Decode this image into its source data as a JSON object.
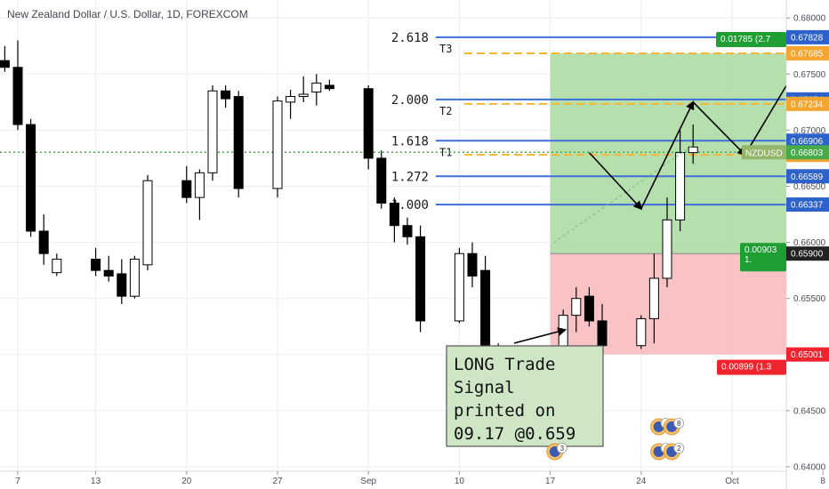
{
  "chart_data": {
    "type": "candlestick",
    "title": "New Zealand Dollar / U.S. Dollar, 1D, FOREXCOM",
    "symbol_tag": "NZDUSD",
    "xlabel": "",
    "ylabel": "",
    "ylim": [
      0.64,
      0.681
    ],
    "x_ticks": [
      {
        "label": "7",
        "date": "2018-08-07"
      },
      {
        "label": "13",
        "date": "2018-08-13"
      },
      {
        "label": "20",
        "date": "2018-08-20"
      },
      {
        "label": "27",
        "date": "2018-08-27"
      },
      {
        "label": "Sep",
        "date": "2018-09-03"
      },
      {
        "label": "10",
        "date": "2018-09-10"
      },
      {
        "label": "17",
        "date": "2018-09-17"
      },
      {
        "label": "24",
        "date": "2018-09-24"
      },
      {
        "label": "Oct",
        "date": "2018-10-01"
      },
      {
        "label": "8",
        "date": "2018-10-08"
      }
    ],
    "y_ticks": [
      "0.68000",
      "0.67500",
      "0.67000",
      "0.66500",
      "0.66000",
      "0.65500",
      "0.65000",
      "0.64500",
      "0.64000"
    ],
    "candles": [
      {
        "date": "2018-08-02",
        "o": 0.676,
        "h": 0.6772,
        "l": 0.6748,
        "c": 0.6752
      },
      {
        "date": "2018-08-03",
        "o": 0.6752,
        "h": 0.6765,
        "l": 0.6745,
        "c": 0.6762
      },
      {
        "date": "2018-08-06",
        "o": 0.6762,
        "h": 0.6775,
        "l": 0.6752,
        "c": 0.6756
      },
      {
        "date": "2018-08-07",
        "o": 0.6756,
        "h": 0.678,
        "l": 0.67,
        "c": 0.6705
      },
      {
        "date": "2018-08-08",
        "o": 0.6705,
        "h": 0.671,
        "l": 0.6605,
        "c": 0.661
      },
      {
        "date": "2018-08-09",
        "o": 0.661,
        "h": 0.6625,
        "l": 0.658,
        "c": 0.659
      },
      {
        "date": "2018-08-10",
        "o": 0.6573,
        "h": 0.659,
        "l": 0.657,
        "c": 0.6585
      },
      {
        "date": "2018-08-13",
        "o": 0.6585,
        "h": 0.6595,
        "l": 0.657,
        "c": 0.6575
      },
      {
        "date": "2018-08-14",
        "o": 0.6575,
        "h": 0.6588,
        "l": 0.6565,
        "c": 0.657
      },
      {
        "date": "2018-08-15",
        "o": 0.6572,
        "h": 0.6585,
        "l": 0.6545,
        "c": 0.6552
      },
      {
        "date": "2018-08-16",
        "o": 0.6552,
        "h": 0.6588,
        "l": 0.655,
        "c": 0.6585
      },
      {
        "date": "2018-08-17",
        "o": 0.658,
        "h": 0.666,
        "l": 0.6575,
        "c": 0.6655
      },
      {
        "date": "2018-08-20",
        "o": 0.6655,
        "h": 0.6668,
        "l": 0.6635,
        "c": 0.664
      },
      {
        "date": "2018-08-21",
        "o": 0.664,
        "h": 0.6665,
        "l": 0.662,
        "c": 0.6662
      },
      {
        "date": "2018-08-22",
        "o": 0.6662,
        "h": 0.674,
        "l": 0.6655,
        "c": 0.6735
      },
      {
        "date": "2018-08-23",
        "o": 0.6735,
        "h": 0.674,
        "l": 0.672,
        "c": 0.6728
      },
      {
        "date": "2018-08-24",
        "o": 0.673,
        "h": 0.6735,
        "l": 0.664,
        "c": 0.6648
      },
      {
        "date": "2018-08-27",
        "o": 0.6648,
        "h": 0.673,
        "l": 0.664,
        "c": 0.6726
      },
      {
        "date": "2018-08-28",
        "o": 0.6725,
        "h": 0.6736,
        "l": 0.671,
        "c": 0.673
      },
      {
        "date": "2018-08-29",
        "o": 0.673,
        "h": 0.6748,
        "l": 0.6725,
        "c": 0.6732
      },
      {
        "date": "2018-08-30",
        "o": 0.6734,
        "h": 0.675,
        "l": 0.6722,
        "c": 0.6742
      },
      {
        "date": "2018-08-31",
        "o": 0.674,
        "h": 0.6745,
        "l": 0.6735,
        "c": 0.6737
      },
      {
        "date": "2018-09-03",
        "o": 0.6737,
        "h": 0.674,
        "l": 0.6665,
        "c": 0.6675
      },
      {
        "date": "2018-09-04",
        "o": 0.6675,
        "h": 0.6682,
        "l": 0.663,
        "c": 0.6635
      },
      {
        "date": "2018-09-05",
        "o": 0.6635,
        "h": 0.664,
        "l": 0.66,
        "c": 0.6615
      },
      {
        "date": "2018-09-06",
        "o": 0.6615,
        "h": 0.6622,
        "l": 0.6598,
        "c": 0.6605
      },
      {
        "date": "2018-09-07",
        "o": 0.6605,
        "h": 0.6615,
        "l": 0.652,
        "c": 0.653
      },
      {
        "date": "2018-09-10",
        "o": 0.653,
        "h": 0.6595,
        "l": 0.6528,
        "c": 0.659
      },
      {
        "date": "2018-09-11",
        "o": 0.659,
        "h": 0.66,
        "l": 0.656,
        "c": 0.657
      },
      {
        "date": "2018-09-12",
        "o": 0.6575,
        "h": 0.6588,
        "l": 0.6495,
        "c": 0.6505
      },
      {
        "date": "2018-09-13",
        "o": 0.6505,
        "h": 0.651,
        "l": 0.6498,
        "c": 0.6502
      },
      {
        "date": "2018-09-14",
        "o": 0.6505,
        "h": 0.6508,
        "l": 0.6478,
        "c": 0.6483
      },
      {
        "date": "2018-09-17",
        "o": 0.6483,
        "h": 0.649,
        "l": 0.6455,
        "c": 0.6475
      },
      {
        "date": "2018-09-18",
        "o": 0.6475,
        "h": 0.654,
        "l": 0.646,
        "c": 0.6535
      },
      {
        "date": "2018-09-19",
        "o": 0.6535,
        "h": 0.656,
        "l": 0.652,
        "c": 0.655
      },
      {
        "date": "2018-09-20",
        "o": 0.6552,
        "h": 0.656,
        "l": 0.6525,
        "c": 0.653
      },
      {
        "date": "2018-09-21",
        "o": 0.653,
        "h": 0.6545,
        "l": 0.65,
        "c": 0.6508
      },
      {
        "date": "2018-09-24",
        "o": 0.6508,
        "h": 0.6535,
        "l": 0.6505,
        "c": 0.6532
      },
      {
        "date": "2018-09-25",
        "o": 0.6532,
        "h": 0.659,
        "l": 0.651,
        "c": 0.6568
      },
      {
        "date": "2018-09-26",
        "o": 0.6568,
        "h": 0.664,
        "l": 0.656,
        "c": 0.662
      },
      {
        "date": "2018-09-27",
        "o": 0.662,
        "h": 0.67,
        "l": 0.661,
        "c": 0.668
      },
      {
        "date": "2018-09-28",
        "o": 0.668,
        "h": 0.6705,
        "l": 0.667,
        "c": 0.6685
      }
    ],
    "current_price": {
      "value": 0.66803,
      "label": "0.66803"
    },
    "fib_levels": [
      {
        "ratio": "2.618",
        "value": 0.67828,
        "price_label": "0.67828",
        "target": "T3"
      },
      {
        "ratio": "2.000",
        "value": 0.67274,
        "price_label": "0.67274",
        "target": "T2"
      },
      {
        "ratio": "1.618",
        "value": 0.66906,
        "price_label": "0.66906",
        "target": "T1"
      },
      {
        "ratio": "1.272",
        "value": 0.66589,
        "price_label": "0.66589",
        "target": ""
      },
      {
        "ratio": "1.000",
        "value": 0.66337,
        "price_label": "0.66337",
        "target": ""
      }
    ],
    "target_lines": [
      {
        "value": 0.67685,
        "price_label": "0.67685"
      },
      {
        "value": 0.67234,
        "price_label": "0.67234"
      },
      {
        "value": 0.6678,
        "price_label": "0.66780"
      }
    ],
    "position": {
      "side": "long",
      "entry": 0.659,
      "entry_label": "0.65900",
      "stop": 0.65001,
      "stop_label": "0.65001",
      "target": 0.67685,
      "start_date": "2018-09-17",
      "end_date": "2018-10-10",
      "target_tag": "0.01785 (2.7",
      "entry_tag": "0.00903",
      "entry_tag_sub": "1.",
      "stop_tag": "0.00899 (1.3"
    },
    "projection_path": [
      {
        "date": "2018-09-20",
        "value": 0.668
      },
      {
        "date": "2018-09-24",
        "value": 0.663
      },
      {
        "date": "2018-09-28",
        "value": 0.6725
      },
      {
        "date": "2018-10-02",
        "value": 0.6678
      },
      {
        "date": "2018-10-07",
        "value": 0.6775
      }
    ],
    "callout": {
      "lines": [
        "LONG Trade",
        "Signal",
        "printed on",
        "09.17 @0.659"
      ],
      "arrow_to": {
        "date": "2018-09-18",
        "value": 0.6522
      }
    },
    "event_badges": [
      {
        "date": "2018-09-19",
        "label": "3",
        "row": "bottom"
      },
      {
        "date": "2018-09-27",
        "label": "4",
        "row": "top"
      },
      {
        "date": "2018-09-28",
        "label": "8",
        "row": "top"
      },
      {
        "date": "2018-09-27",
        "label": "4",
        "row": "bottom"
      },
      {
        "date": "2018-09-28",
        "label": "2",
        "row": "bottom"
      }
    ],
    "colors": {
      "up": "#ffffff",
      "down": "#000000",
      "fib_line": "#3d6fd6",
      "target_dash": "#f2b73a",
      "profit_zone": "#a8dba0",
      "loss_zone": "#f8b9bc",
      "tag_blue": "#2c62c9",
      "tag_orange": "#f4a531",
      "tag_green": "#1e9e33",
      "tag_red": "#f0242f",
      "tag_dark": "#222222",
      "price_line": "#48a949"
    },
    "grid": true,
    "legend": "none"
  }
}
